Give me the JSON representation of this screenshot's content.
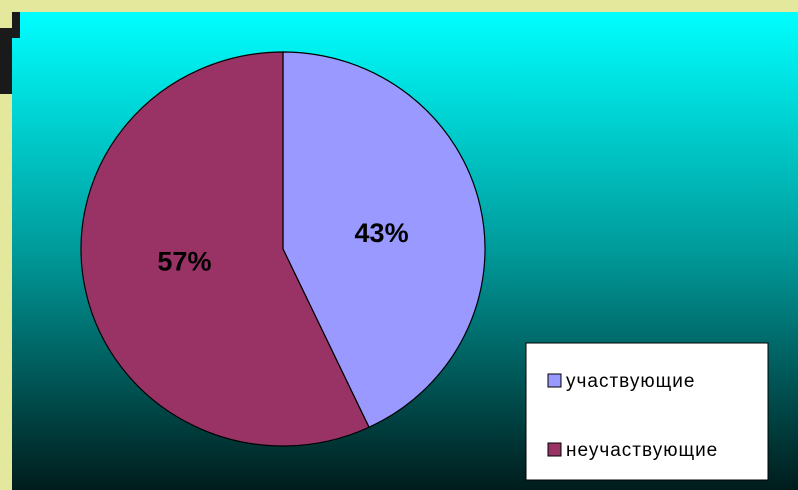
{
  "chart_data": {
    "type": "pie",
    "categories": [
      "участвующие",
      "неучаствующие"
    ],
    "values": [
      43,
      57
    ],
    "value_labels": [
      "43%",
      "57%"
    ],
    "colors": [
      "#9999ff",
      "#993366"
    ]
  }
}
